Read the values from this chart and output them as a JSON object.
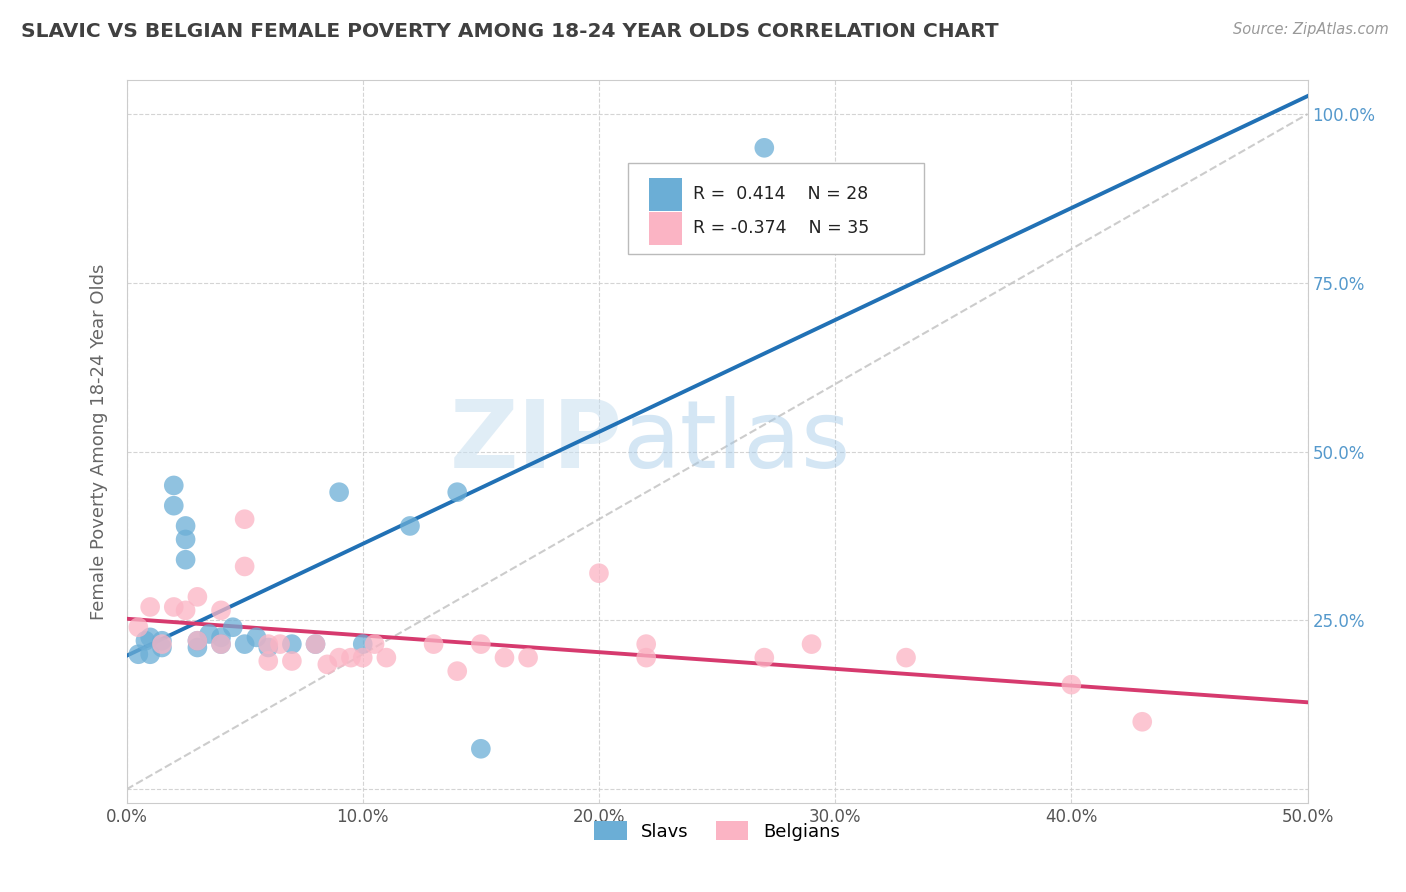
{
  "title": "SLAVIC VS BELGIAN FEMALE POVERTY AMONG 18-24 YEAR OLDS CORRELATION CHART",
  "source": "Source: ZipAtlas.com",
  "ylabel": "Female Poverty Among 18-24 Year Olds",
  "xlim": [
    0.0,
    0.5
  ],
  "ylim": [
    -0.02,
    1.05
  ],
  "slavs_color": "#6baed6",
  "belgians_color": "#fbb4c4",
  "slavs_line_color": "#2171b5",
  "belgians_line_color": "#d63a6e",
  "slavs_R": 0.414,
  "slavs_N": 28,
  "belgians_R": -0.374,
  "belgians_N": 35,
  "slavs_x": [
    0.005,
    0.008,
    0.01,
    0.01,
    0.015,
    0.015,
    0.02,
    0.02,
    0.025,
    0.025,
    0.025,
    0.03,
    0.03,
    0.035,
    0.04,
    0.04,
    0.045,
    0.05,
    0.055,
    0.06,
    0.07,
    0.08,
    0.09,
    0.1,
    0.12,
    0.14,
    0.27,
    0.15
  ],
  "slavs_y": [
    0.2,
    0.22,
    0.2,
    0.225,
    0.21,
    0.22,
    0.42,
    0.45,
    0.34,
    0.37,
    0.39,
    0.21,
    0.22,
    0.23,
    0.215,
    0.225,
    0.24,
    0.215,
    0.225,
    0.21,
    0.215,
    0.215,
    0.44,
    0.215,
    0.39,
    0.44,
    0.95,
    0.06
  ],
  "belgians_x": [
    0.005,
    0.01,
    0.015,
    0.02,
    0.025,
    0.03,
    0.03,
    0.04,
    0.04,
    0.05,
    0.05,
    0.06,
    0.06,
    0.065,
    0.07,
    0.08,
    0.085,
    0.09,
    0.095,
    0.1,
    0.105,
    0.11,
    0.13,
    0.14,
    0.15,
    0.16,
    0.17,
    0.2,
    0.22,
    0.22,
    0.27,
    0.29,
    0.33,
    0.4,
    0.43
  ],
  "belgians_y": [
    0.24,
    0.27,
    0.215,
    0.27,
    0.265,
    0.22,
    0.285,
    0.215,
    0.265,
    0.33,
    0.4,
    0.19,
    0.215,
    0.215,
    0.19,
    0.215,
    0.185,
    0.195,
    0.195,
    0.195,
    0.215,
    0.195,
    0.215,
    0.175,
    0.215,
    0.195,
    0.195,
    0.32,
    0.195,
    0.215,
    0.195,
    0.215,
    0.195,
    0.155,
    0.1
  ],
  "watermark_zip": "ZIP",
  "watermark_atlas": "atlas",
  "background_color": "#ffffff",
  "grid_color": "#d0d0d0",
  "title_color": "#404040",
  "axis_label_color": "#666666",
  "right_tick_color": "#5599cc",
  "ref_line_color": "#c0c0c0"
}
